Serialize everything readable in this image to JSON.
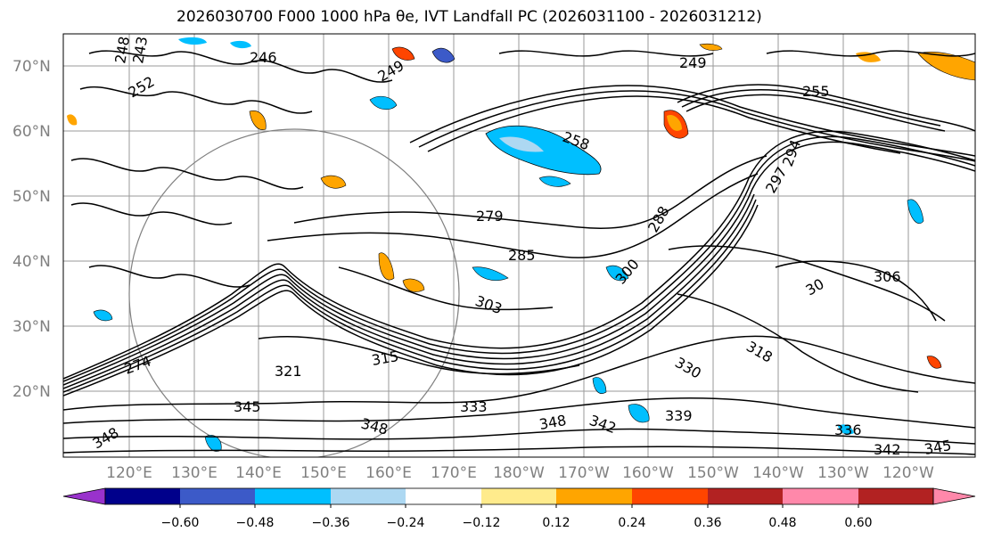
{
  "title": "2026030700 F000 1000 hPa θe, IVT Landfall PC (2026031100 - 2026031212)",
  "map": {
    "lat_labels": [
      "70°N",
      "60°N",
      "50°N",
      "40°N",
      "30°N",
      "20°N"
    ],
    "lon_labels": [
      "120°E",
      "130°E",
      "140°E",
      "150°E",
      "160°E",
      "170°E",
      "180°W",
      "170°W",
      "160°W",
      "150°W",
      "140°W",
      "130°W",
      "120°W"
    ],
    "contour_labels": [
      "248",
      "243",
      "252",
      "246",
      "249",
      "249",
      "255",
      "258",
      "279",
      "285",
      "297",
      "294",
      "288",
      "300",
      "303",
      "306",
      "30",
      "315",
      "318",
      "321",
      "330",
      "333",
      "339",
      "336",
      "342",
      "342",
      "345",
      "345",
      "348",
      "348",
      "348",
      "274"
    ]
  },
  "colorbar": {
    "colors": [
      "#9932cc",
      "#00008b",
      "#3c5ac8",
      "#00bfff",
      "#add8f2",
      "#ffffff",
      "#ffeb8c",
      "#ffa500",
      "#ff4500",
      "#b22222",
      "#ff88aa"
    ],
    "tick_labels": [
      "−0.60",
      "−0.48",
      "−0.36",
      "−0.24",
      "−0.12",
      "0.12",
      "0.24",
      "0.36",
      "0.48",
      "0.60"
    ]
  }
}
